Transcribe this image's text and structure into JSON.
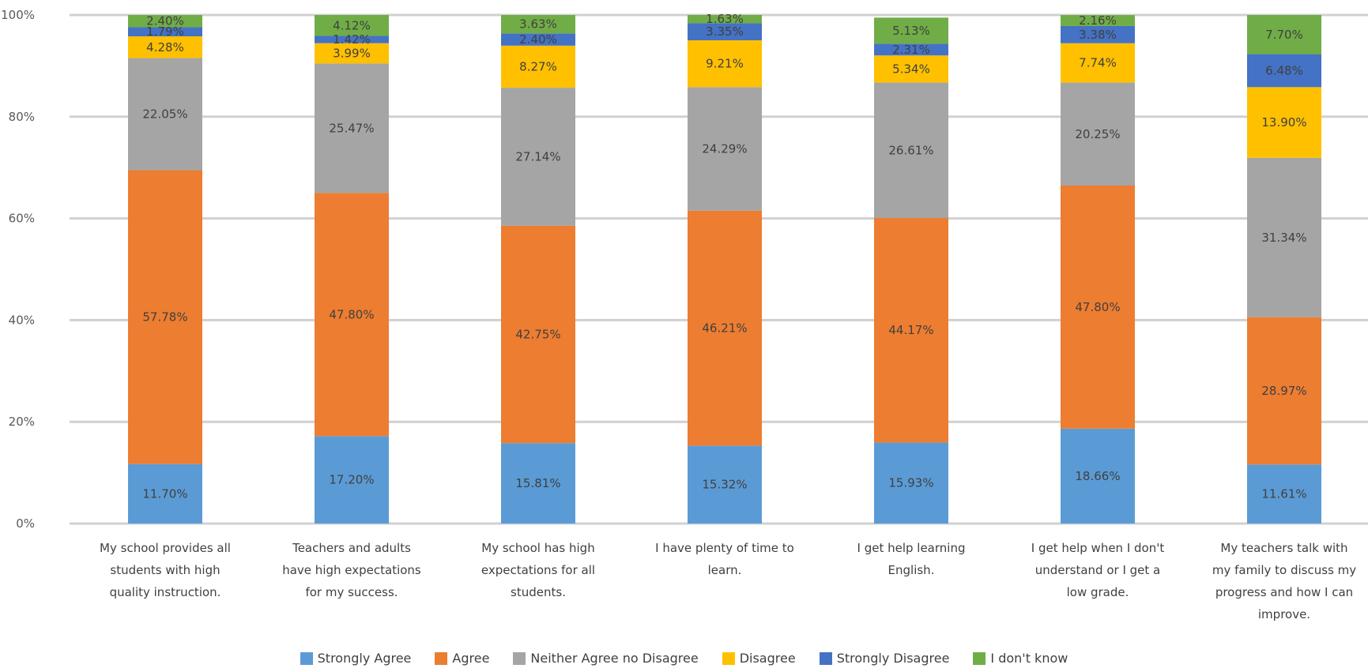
{
  "chart_data": {
    "type": "bar",
    "stacked": true,
    "percent_stacked": true,
    "categories": [
      "My school provides all students with high quality instruction.",
      "Teachers and adults have high expectations for my success.",
      "My school has high expectations for all students.",
      "I have plenty of time to learn.",
      "I get help learning English.",
      "I get help when I don't understand or I get a low grade.",
      "My teachers talk with my family to discuss my progress and how I can improve."
    ],
    "category_lines": [
      [
        "My school provides all",
        "students with high",
        "quality instruction."
      ],
      [
        "Teachers and adults",
        "have high expectations",
        "for my success."
      ],
      [
        "My school has high",
        "expectations for all",
        "students."
      ],
      [
        "I have plenty of time to",
        "learn."
      ],
      [
        "I get help learning",
        "English."
      ],
      [
        "I get help when I don't",
        "understand or I get a",
        "low grade."
      ],
      [
        "My teachers talk with",
        "my family to discuss my",
        "progress and how I can",
        "improve."
      ]
    ],
    "series": [
      {
        "name": "Strongly Agree",
        "color": "#5b9bd5",
        "values": [
          11.7,
          17.2,
          15.81,
          15.32,
          15.93,
          18.66,
          11.61
        ],
        "labels": [
          "11.70%",
          "17.20%",
          "15.81%",
          "15.32%",
          "15.93%",
          "18.66%",
          "11.61%"
        ]
      },
      {
        "name": "Agree",
        "color": "#ed7d31",
        "values": [
          57.78,
          47.8,
          42.75,
          46.21,
          44.17,
          47.8,
          28.97
        ],
        "labels": [
          "57.78%",
          "47.80%",
          "42.75%",
          "46.21%",
          "44.17%",
          "47.80%",
          "28.97%"
        ]
      },
      {
        "name": "Neither Agree no Disagree",
        "color": "#a5a5a5",
        "values": [
          22.05,
          25.47,
          27.14,
          24.29,
          26.61,
          20.25,
          31.34
        ],
        "labels": [
          "22.05%",
          "25.47%",
          "27.14%",
          "24.29%",
          "26.61%",
          "20.25%",
          "31.34%"
        ]
      },
      {
        "name": "Disagree",
        "color": "#ffc000",
        "values": [
          4.28,
          3.99,
          8.27,
          9.21,
          5.34,
          7.74,
          13.9
        ],
        "labels": [
          "4.28%",
          "3.99%",
          "8.27%",
          "9.21%",
          "5.34%",
          "7.74%",
          "13.90%"
        ]
      },
      {
        "name": "Strongly Disagree",
        "color": "#4472c4",
        "values": [
          1.79,
          1.42,
          2.4,
          3.35,
          2.31,
          3.38,
          6.48
        ],
        "labels": [
          "1.79%",
          "1.42%",
          "2.40%",
          "3.35%",
          "2.31%",
          "3.38%",
          "6.48%"
        ]
      },
      {
        "name": "I don't know",
        "color": "#70ad47",
        "values": [
          2.4,
          4.12,
          3.63,
          1.63,
          5.13,
          2.16,
          7.7
        ],
        "labels": [
          "2.40%",
          "4.12%",
          "3.63%",
          "1.63%",
          "5.13%",
          "2.16%",
          "7.70%"
        ]
      }
    ],
    "yticks": [
      "0%",
      "20%",
      "40%",
      "60%",
      "80%",
      "100%"
    ],
    "ylim": [
      0,
      100
    ],
    "grid": true,
    "legend_position": "bottom"
  }
}
